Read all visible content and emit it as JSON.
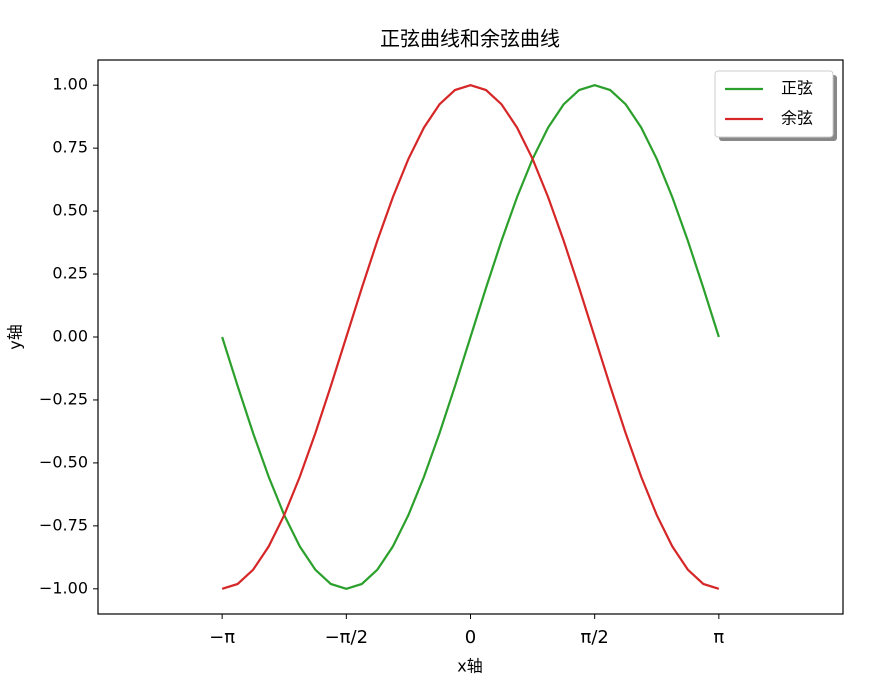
{
  "chart_data": {
    "type": "line",
    "title": "正弦曲线和余弦曲线",
    "x_label": "x轴",
    "y_label": "y轴",
    "x": [
      -3.1416,
      -2.9452,
      -2.7489,
      -2.5525,
      -2.3562,
      -2.1598,
      -1.9635,
      -1.7671,
      -1.5708,
      -1.3744,
      -1.1781,
      -0.9817,
      -0.7854,
      -0.589,
      -0.3927,
      -0.1963,
      0,
      0.1963,
      0.3927,
      0.589,
      0.7854,
      0.9817,
      1.1781,
      1.3744,
      1.5708,
      1.7671,
      1.9635,
      2.1598,
      2.3562,
      2.5525,
      2.7489,
      2.9452,
      3.1416
    ],
    "series": [
      {
        "name": "正弦",
        "color": "#2ca02c",
        "values": [
          0,
          -0.1951,
          -0.3827,
          -0.5556,
          -0.7071,
          -0.8315,
          -0.9239,
          -0.9808,
          -1,
          -0.9808,
          -0.9239,
          -0.8315,
          -0.7071,
          -0.5556,
          -0.3827,
          -0.1951,
          0,
          0.1951,
          0.3827,
          0.5556,
          0.7071,
          0.8315,
          0.9239,
          0.9808,
          1,
          0.9808,
          0.9239,
          0.8315,
          0.7071,
          0.5556,
          0.3827,
          0.1951,
          0
        ]
      },
      {
        "name": "余弦",
        "color": "#d62728",
        "values": [
          -1,
          -0.9808,
          -0.9239,
          -0.8315,
          -0.7071,
          -0.5556,
          -0.3827,
          -0.1951,
          0,
          0.1951,
          0.3827,
          0.5556,
          0.7071,
          0.8315,
          0.9239,
          0.9808,
          1,
          0.9808,
          0.9239,
          0.8315,
          0.7071,
          0.5556,
          0.3827,
          0.1951,
          0,
          -0.1951,
          -0.3827,
          -0.5556,
          -0.7071,
          -0.8315,
          -0.9239,
          -0.9808,
          -1
        ]
      }
    ],
    "xlim": [
      -4.712,
      4.712
    ],
    "ylim": [
      -1.1,
      1.1
    ],
    "xticks": [
      {
        "value": -3.1416,
        "label": "−π"
      },
      {
        "value": -1.5708,
        "label": "−π/2"
      },
      0,
      {
        "value": 1.5708,
        "label": "π/2"
      },
      {
        "value": 3.1416,
        "label": "π"
      }
    ],
    "yticks": [
      {
        "value": 1,
        "label": "1.00"
      },
      {
        "value": 0.75,
        "label": "0.75"
      },
      {
        "value": 0.5,
        "label": "0.50"
      },
      {
        "value": 0.25,
        "label": "0.25"
      },
      {
        "value": 0,
        "label": "0.00"
      },
      {
        "value": -0.25,
        "label": "−0.25"
      },
      {
        "value": -0.5,
        "label": "−0.50"
      },
      {
        "value": -0.75,
        "label": "−0.75"
      },
      {
        "value": -1,
        "label": "−1.00"
      }
    ],
    "legend": "upper right",
    "grid": false
  }
}
